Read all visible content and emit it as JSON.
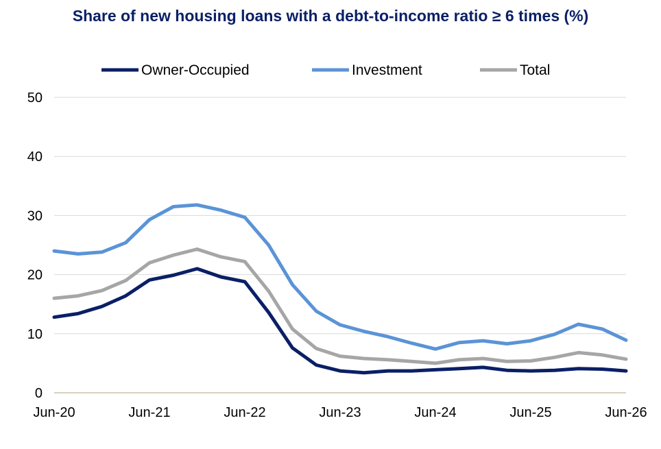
{
  "title": "Share of new housing loans with a debt-to-income ratio ≥ 6 times (%)",
  "chart_data": {
    "type": "line",
    "title": "Share of new housing loans with a debt-to-income ratio ≥ 6 times (%)",
    "xlabel": "",
    "ylabel": "",
    "ylim": [
      0,
      50
    ],
    "yticks": [
      0,
      10,
      20,
      30,
      40,
      50
    ],
    "xtick_labels": [
      "Jun-20",
      "Jun-21",
      "Jun-22",
      "Jun-23",
      "Jun-24",
      "Jun-25",
      "Jun-26"
    ],
    "x": [
      "Jun-20",
      "Sep-20",
      "Dec-20",
      "Mar-21",
      "Jun-21",
      "Sep-21",
      "Dec-21",
      "Mar-22",
      "Jun-22",
      "Sep-22",
      "Dec-22",
      "Mar-23",
      "Jun-23",
      "Sep-23",
      "Dec-23",
      "Mar-24",
      "Jun-24",
      "Sep-24",
      "Dec-24",
      "Mar-25",
      "Jun-25",
      "Sep-25",
      "Dec-25",
      "Mar-26",
      "Jun-26"
    ],
    "grid": true,
    "legend_position": "top",
    "series": [
      {
        "name": "Owner-Occupied",
        "color": "#0a1f66",
        "values": [
          12.8,
          13.4,
          14.6,
          16.4,
          19.1,
          19.9,
          21.0,
          19.6,
          18.8,
          13.6,
          7.6,
          4.7,
          3.7,
          3.4,
          3.7,
          3.7,
          3.9,
          4.1,
          4.3,
          3.8,
          3.7,
          3.8,
          4.1,
          4.0,
          3.7
        ]
      },
      {
        "name": "Investment",
        "color": "#5b93d6",
        "values": [
          24.0,
          23.5,
          23.8,
          25.4,
          29.3,
          31.5,
          31.8,
          30.9,
          29.7,
          25.0,
          18.3,
          13.8,
          11.5,
          10.4,
          9.5,
          8.4,
          7.4,
          8.5,
          8.8,
          8.3,
          8.8,
          9.9,
          11.6,
          10.8,
          8.9
        ]
      },
      {
        "name": "Total",
        "color": "#a6a6a6",
        "values": [
          16.0,
          16.4,
          17.3,
          19.0,
          22.0,
          23.3,
          24.3,
          23.0,
          22.2,
          17.2,
          10.8,
          7.5,
          6.2,
          5.8,
          5.6,
          5.3,
          5.0,
          5.6,
          5.8,
          5.3,
          5.4,
          6.0,
          6.8,
          6.4,
          5.7
        ]
      }
    ]
  }
}
